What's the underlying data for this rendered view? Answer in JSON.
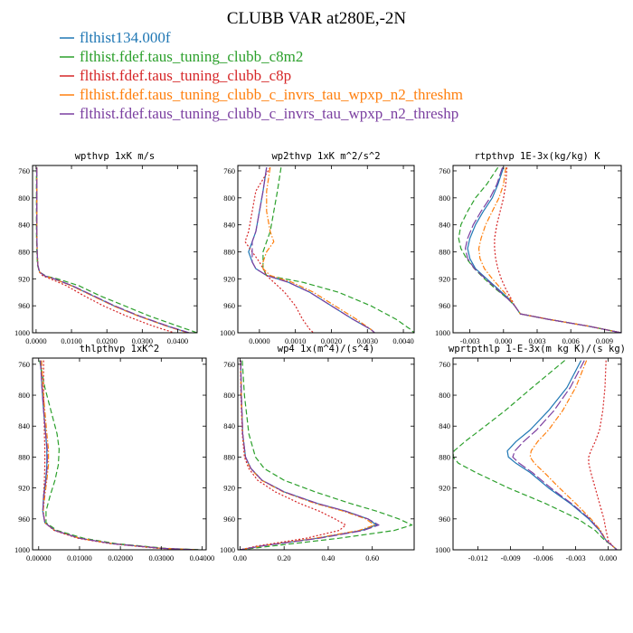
{
  "figure": {
    "title": "CLUBB VAR at280E,-2N"
  },
  "legend": [
    {
      "label": "flthist134.000f",
      "color": "#1f77b4",
      "dash": "solid"
    },
    {
      "label": "flthist.fdef.taus_tuning_clubb_c8m2",
      "color": "#2ca02c",
      "dash": "dashed"
    },
    {
      "label": "flthist.fdef.taus_tuning_clubb_c8p",
      "color": "#d62728",
      "dash": "dotted"
    },
    {
      "label": "flthist.fdef.taus_tuning_clubb_c_invrs_tau_wpxp_n2_threshm",
      "color": "#ff7f0e",
      "dash": "dashdot"
    },
    {
      "label": "flthist.fdef.taus_tuning_clubb_c_invrs_tau_wpxp_n2_threshp",
      "color": "#7b3fa0",
      "dash": "longdash"
    }
  ],
  "chart_data": [
    {
      "type": "line",
      "title": "wpthvp  1xK m/s",
      "xlim": [
        -0.001,
        0.0455
      ],
      "ylim": [
        1000,
        752
      ],
      "xticks": [
        0.0,
        0.01,
        0.02,
        0.03,
        0.04
      ],
      "xtick_labels": [
        "0.0000",
        "0.0100",
        "0.0200",
        "0.0300",
        "0.0400"
      ],
      "yticks": [
        760,
        800,
        840,
        880,
        920,
        960,
        1000
      ],
      "ytick_labels": [
        "760",
        "800",
        "840",
        "880",
        "920",
        "960",
        "1000"
      ],
      "y": [
        755,
        800,
        850,
        880,
        900,
        910,
        916,
        920,
        930,
        945,
        960,
        975,
        990,
        1000
      ],
      "series": [
        {
          "name": "flthist134.000f",
          "x": [
            0.0002,
            0.0002,
            0.0002,
            0.0003,
            0.0005,
            0.001,
            0.0025,
            0.005,
            0.01,
            0.016,
            0.022,
            0.029,
            0.037,
            0.043
          ]
        },
        {
          "name": "flthist.fdef.taus_tuning_clubb_c8m2",
          "x": [
            0.0001,
            0.0001,
            0.0001,
            0.0002,
            0.0004,
            0.001,
            0.0028,
            0.006,
            0.012,
            0.018,
            0.025,
            0.032,
            0.04,
            0.0455
          ]
        },
        {
          "name": "flthist.fdef.taus_tuning_clubb_c8p",
          "x": [
            0.0002,
            0.0002,
            0.0002,
            0.0003,
            0.0005,
            0.0009,
            0.002,
            0.004,
            0.0085,
            0.0135,
            0.019,
            0.0255,
            0.033,
            0.039
          ]
        },
        {
          "name": "flthist.fdef.taus_tuning_clubb_c_invrs_tau_wpxp_n2_threshm",
          "x": [
            0.0002,
            0.0002,
            0.0002,
            0.0003,
            0.0005,
            0.001,
            0.0025,
            0.005,
            0.0098,
            0.0158,
            0.0218,
            0.0288,
            0.0368,
            0.0428
          ]
        },
        {
          "name": "flthist.fdef.taus_tuning_clubb_c_invrs_tau_wpxp_n2_threshp",
          "x": [
            0.0002,
            0.0002,
            0.0002,
            0.0003,
            0.0005,
            0.001,
            0.0026,
            0.0052,
            0.0102,
            0.0162,
            0.0222,
            0.0292,
            0.0372,
            0.0432
          ]
        }
      ]
    },
    {
      "type": "line",
      "title": "wp2thvp  1xK m^2/s^2",
      "xlim": [
        -0.0006,
        0.0043
      ],
      "ylim": [
        1000,
        752
      ],
      "xticks": [
        0.0,
        0.001,
        0.002,
        0.003,
        0.004
      ],
      "xtick_labels": [
        "0.0000",
        "0.0010",
        "0.0020",
        "0.0030",
        "0.0040"
      ],
      "yticks": [
        760,
        800,
        840,
        880,
        920,
        960,
        1000
      ],
      "ytick_labels": [
        "760",
        "800",
        "840",
        "880",
        "920",
        "960",
        "1000"
      ],
      "y": [
        755,
        790,
        820,
        850,
        865,
        880,
        895,
        905,
        915,
        925,
        940,
        960,
        980,
        995,
        1000
      ],
      "series": [
        {
          "name": "flthist134.000f",
          "x": [
            0.0002,
            0.0001,
            0.0,
            -0.0001,
            -0.0002,
            -0.0003,
            -0.0002,
            -0.0001,
            0.0002,
            0.0008,
            0.0014,
            0.002,
            0.0026,
            0.0031,
            0.0032
          ]
        },
        {
          "name": "flthist.fdef.taus_tuning_clubb_c8m2",
          "x": [
            0.0006,
            0.0005,
            0.0004,
            0.0003,
            0.0002,
            0.0001,
            0.0001,
            0.0001,
            0.0002,
            0.0012,
            0.0022,
            0.0031,
            0.0038,
            0.0042,
            0.0043
          ]
        },
        {
          "name": "flthist.fdef.taus_tuning_clubb_c8p",
          "x": [
            0.0003,
            -0.0001,
            -0.0002,
            -0.0003,
            -0.0004,
            -0.0002,
            0.0,
            0.0001,
            0.0002,
            0.0004,
            0.0007,
            0.001,
            0.0012,
            0.0014,
            0.0015
          ]
        },
        {
          "name": "flthist.fdef.taus_tuning_clubb_c_invrs_tau_wpxp_n2_threshm",
          "x": [
            0.0003,
            0.0002,
            0.0002,
            0.0003,
            0.0004,
            0.0002,
            0.0001,
            0.0001,
            0.0003,
            0.0009,
            0.0015,
            0.0021,
            0.0027,
            0.0031,
            0.0032
          ]
        },
        {
          "name": "flthist.fdef.taus_tuning_clubb_c_invrs_tau_wpxp_n2_threshp",
          "x": [
            0.0002,
            0.0001,
            0.0,
            -0.0001,
            -0.0002,
            -0.0002,
            -0.0002,
            -0.0001,
            0.0002,
            0.0008,
            0.0014,
            0.002,
            0.0026,
            0.0031,
            0.0032
          ]
        }
      ]
    },
    {
      "type": "line",
      "title": "rtpthvp  1E-3x(kg/kg) K",
      "xlim": [
        -0.0045,
        0.0105
      ],
      "ylim": [
        1000,
        752
      ],
      "xticks": [
        -0.003,
        0.0,
        0.003,
        0.006,
        0.009
      ],
      "xtick_labels": [
        "-0.003",
        "0.000",
        "0.003",
        "0.006",
        "0.009"
      ],
      "yticks": [
        760,
        800,
        840,
        880,
        920,
        960,
        1000
      ],
      "ytick_labels": [
        "760",
        "800",
        "840",
        "880",
        "920",
        "960",
        "1000"
      ],
      "y": [
        755,
        780,
        800,
        820,
        840,
        860,
        875,
        890,
        905,
        920,
        935,
        950,
        960,
        972,
        980,
        990,
        1000
      ],
      "series": [
        {
          "name": "flthist134.000f",
          "x": [
            0.0,
            -0.0005,
            -0.001,
            -0.0018,
            -0.0025,
            -0.003,
            -0.0032,
            -0.003,
            -0.0025,
            -0.0015,
            -0.0005,
            0.0005,
            0.001,
            0.0015,
            0.004,
            0.0075,
            0.0105
          ]
        },
        {
          "name": "flthist.fdef.taus_tuning_clubb_c8m2",
          "x": [
            -0.0005,
            -0.0015,
            -0.0025,
            -0.0032,
            -0.0038,
            -0.004,
            -0.0038,
            -0.0033,
            -0.0026,
            -0.0017,
            -0.0007,
            0.0004,
            0.001,
            0.0015,
            0.004,
            0.0075,
            0.0105
          ]
        },
        {
          "name": "flthist.fdef.taus_tuning_clubb_c8p",
          "x": [
            0.0003,
            0.0002,
            0.0,
            -0.0003,
            -0.0006,
            -0.0008,
            -0.0008,
            -0.0007,
            -0.0005,
            -0.0002,
            0.0002,
            0.0007,
            0.001,
            0.0015,
            0.004,
            0.0075,
            0.0105
          ]
        },
        {
          "name": "flthist.fdef.taus_tuning_clubb_c_invrs_tau_wpxp_n2_threshm",
          "x": [
            0.0002,
            0.0,
            -0.0004,
            -0.001,
            -0.0016,
            -0.002,
            -0.0022,
            -0.0021,
            -0.0017,
            -0.001,
            -0.0002,
            0.0006,
            0.001,
            0.0015,
            0.004,
            0.0075,
            0.0105
          ]
        },
        {
          "name": "flthist.fdef.taus_tuning_clubb_c_invrs_tau_wpxp_n2_threshp",
          "x": [
            -0.0001,
            -0.0006,
            -0.0012,
            -0.002,
            -0.0027,
            -0.0032,
            -0.0034,
            -0.0032,
            -0.0026,
            -0.0016,
            -0.0006,
            0.0004,
            0.001,
            0.0015,
            0.004,
            0.0075,
            0.0105
          ]
        }
      ]
    },
    {
      "type": "line",
      "title": "thlpthvp  1xK^2",
      "xlim": [
        -0.0015,
        0.041
      ],
      "ylim": [
        1000,
        752
      ],
      "xticks": [
        0.0,
        0.01,
        0.02,
        0.03,
        0.04
      ],
      "xtick_labels": [
        "0.00000",
        "0.01000",
        "0.02000",
        "0.03000",
        "0.04000"
      ],
      "yticks": [
        760,
        800,
        840,
        880,
        920,
        960,
        1000
      ],
      "ytick_labels": [
        "760",
        "800",
        "840",
        "880",
        "920",
        "960",
        "1000"
      ],
      "y": [
        755,
        790,
        820,
        850,
        870,
        890,
        910,
        930,
        950,
        965,
        975,
        985,
        992,
        998,
        1000
      ],
      "series": [
        {
          "name": "flthist134.000f",
          "x": [
            0.0005,
            0.0008,
            0.0012,
            0.0017,
            0.002,
            0.002,
            0.0017,
            0.0012,
            0.001,
            0.0015,
            0.004,
            0.01,
            0.018,
            0.03,
            0.039
          ]
        },
        {
          "name": "flthist.fdef.taus_tuning_clubb_c8m2",
          "x": [
            0.0002,
            0.0015,
            0.003,
            0.0045,
            0.005,
            0.0048,
            0.004,
            0.0028,
            0.0018,
            0.0018,
            0.0045,
            0.011,
            0.019,
            0.031,
            0.04
          ]
        },
        {
          "name": "flthist.fdef.taus_tuning_clubb_c8p",
          "x": [
            0.0012,
            0.0012,
            0.0013,
            0.0014,
            0.0015,
            0.0015,
            0.0014,
            0.0012,
            0.0011,
            0.0015,
            0.0038,
            0.0095,
            0.0175,
            0.029,
            0.038
          ]
        },
        {
          "name": "flthist.fdef.taus_tuning_clubb_c_invrs_tau_wpxp_n2_threshm",
          "x": [
            0.0007,
            0.001,
            0.0015,
            0.002,
            0.0024,
            0.0024,
            0.002,
            0.0015,
            0.0011,
            0.0015,
            0.004,
            0.01,
            0.018,
            0.03,
            0.039
          ]
        },
        {
          "name": "flthist.fdef.taus_tuning_clubb_c_invrs_tau_wpxp_n2_threshp",
          "x": [
            0.0004,
            0.0008,
            0.0012,
            0.0017,
            0.0021,
            0.0021,
            0.0018,
            0.0013,
            0.001,
            0.0015,
            0.004,
            0.01,
            0.018,
            0.03,
            0.039
          ]
        }
      ]
    },
    {
      "type": "line",
      "title": "wp4  1x(m^4)/(s^4)",
      "xlim": [
        -0.01,
        0.79
      ],
      "ylim": [
        1000,
        752
      ],
      "xticks": [
        0.0,
        0.2,
        0.4,
        0.6
      ],
      "xtick_labels": [
        "0.00",
        "0.20",
        "0.40",
        "0.60"
      ],
      "yticks": [
        760,
        800,
        840,
        880,
        920,
        960,
        1000
      ],
      "ytick_labels": [
        "760",
        "800",
        "840",
        "880",
        "920",
        "960",
        "1000"
      ],
      "y": [
        755,
        800,
        850,
        880,
        895,
        910,
        925,
        940,
        950,
        960,
        968,
        975,
        985,
        995,
        1000
      ],
      "series": [
        {
          "name": "flthist134.000f",
          "x": [
            0.003,
            0.006,
            0.012,
            0.025,
            0.05,
            0.1,
            0.2,
            0.35,
            0.48,
            0.58,
            0.62,
            0.55,
            0.35,
            0.1,
            0.0
          ]
        },
        {
          "name": "flthist.fdef.taus_tuning_clubb_c8m2",
          "x": [
            0.01,
            0.02,
            0.04,
            0.07,
            0.11,
            0.2,
            0.34,
            0.5,
            0.62,
            0.72,
            0.78,
            0.7,
            0.45,
            0.15,
            0.0
          ]
        },
        {
          "name": "flthist.fdef.taus_tuning_clubb_c8p",
          "x": [
            0.002,
            0.004,
            0.01,
            0.02,
            0.04,
            0.08,
            0.16,
            0.27,
            0.36,
            0.43,
            0.48,
            0.45,
            0.3,
            0.08,
            0.0
          ]
        },
        {
          "name": "flthist.fdef.taus_tuning_clubb_c_invrs_tau_wpxp_n2_threshm",
          "x": [
            0.003,
            0.006,
            0.012,
            0.024,
            0.048,
            0.097,
            0.195,
            0.34,
            0.47,
            0.57,
            0.61,
            0.54,
            0.34,
            0.1,
            0.0
          ]
        },
        {
          "name": "flthist.fdef.taus_tuning_clubb_c_invrs_tau_wpxp_n2_threshp",
          "x": [
            0.003,
            0.006,
            0.012,
            0.025,
            0.05,
            0.1,
            0.2,
            0.35,
            0.48,
            0.58,
            0.63,
            0.56,
            0.36,
            0.1,
            0.0
          ]
        }
      ]
    },
    {
      "type": "line",
      "title": "wprtpthlp  1-E-3x(m kg K)/(s kg)",
      "xlim": [
        -0.0143,
        0.0012
      ],
      "ylim": [
        1000,
        752
      ],
      "xticks": [
        -0.012,
        -0.009,
        -0.006,
        -0.003,
        0.0
      ],
      "xtick_labels": [
        "-0.012",
        "-0.009",
        "-0.006",
        "-0.003",
        "0.000"
      ],
      "yticks": [
        760,
        800,
        840,
        880,
        920,
        960,
        1000
      ],
      "ytick_labels": [
        "760",
        "800",
        "840",
        "880",
        "920",
        "960",
        "1000"
      ],
      "y": [
        755,
        790,
        820,
        845,
        860,
        872,
        880,
        888,
        900,
        920,
        940,
        960,
        975,
        988,
        995,
        1000
      ],
      "series": [
        {
          "name": "flthist134.000f",
          "x": [
            -0.0025,
            -0.0038,
            -0.0055,
            -0.0072,
            -0.0085,
            -0.0093,
            -0.0092,
            -0.0085,
            -0.0072,
            -0.0055,
            -0.0035,
            -0.0018,
            -0.0008,
            -0.0002,
            0.0004,
            0.0008
          ]
        },
        {
          "name": "flthist.fdef.taus_tuning_clubb_c8m2",
          "x": [
            -0.004,
            -0.007,
            -0.0095,
            -0.0118,
            -0.0132,
            -0.0142,
            -0.0143,
            -0.0138,
            -0.0122,
            -0.0092,
            -0.0058,
            -0.0028,
            -0.0012,
            -0.0003,
            0.0004,
            0.0008
          ]
        },
        {
          "name": "flthist.fdef.taus_tuning_clubb_c8p",
          "x": [
            -0.0002,
            -0.0003,
            -0.0005,
            -0.0008,
            -0.0012,
            -0.0016,
            -0.0018,
            -0.0018,
            -0.0016,
            -0.0012,
            -0.0008,
            -0.0004,
            -0.0002,
            0.0,
            0.0004,
            0.0008
          ]
        },
        {
          "name": "flthist.fdef.taus_tuning_clubb_c_invrs_tau_wpxp_n2_threshm",
          "x": [
            -0.002,
            -0.003,
            -0.0042,
            -0.0055,
            -0.0065,
            -0.0071,
            -0.0072,
            -0.0068,
            -0.0059,
            -0.0045,
            -0.003,
            -0.0016,
            -0.0007,
            -0.0002,
            0.0004,
            0.0008
          ]
        },
        {
          "name": "flthist.fdef.taus_tuning_clubb_c_invrs_tau_wpxp_n2_threshp",
          "x": [
            -0.0022,
            -0.0035,
            -0.005,
            -0.0066,
            -0.0078,
            -0.0086,
            -0.0088,
            -0.0082,
            -0.007,
            -0.0053,
            -0.0034,
            -0.0017,
            -0.0008,
            -0.0002,
            0.0004,
            0.0008
          ]
        }
      ]
    }
  ]
}
